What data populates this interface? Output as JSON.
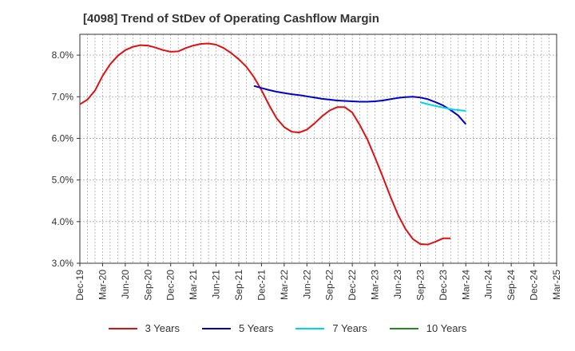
{
  "title": "[4098]  Trend of StDev of Operating Cashflow Margin",
  "colors": {
    "3 Years": "#dd1111",
    "5 Years": "#0000cc",
    "7 Years": "#00d4e8",
    "10 Years": "#228822"
  },
  "chart_data": {
    "type": "line",
    "title": "[4098]  Trend of StDev of Operating Cashflow Margin",
    "x_tick_labels": [
      "Dec-19",
      "Mar-20",
      "Jun-20",
      "Sep-20",
      "Dec-20",
      "Mar-21",
      "Jun-21",
      "Sep-21",
      "Dec-21",
      "Mar-22",
      "Jun-22",
      "Sep-22",
      "Dec-22",
      "Mar-23",
      "Jun-23",
      "Sep-23",
      "Dec-23",
      "Mar-24",
      "Jun-24",
      "Sep-24",
      "Dec-24",
      "Mar-25"
    ],
    "y_tick_labels": [
      "8.0%",
      "7.0%",
      "6.0%",
      "5.0%",
      "4.0%",
      "3.0%"
    ],
    "ylim": [
      3.0,
      8.5
    ],
    "y_unit": "%",
    "grid": true,
    "legend_position": "bottom",
    "series": [
      {
        "name": "3 Years",
        "x_start": "Dec-19",
        "step": "month",
        "values": [
          6.82,
          6.93,
          7.15,
          7.5,
          7.78,
          7.98,
          8.12,
          8.2,
          8.24,
          8.23,
          8.18,
          8.12,
          8.08,
          8.09,
          8.17,
          8.23,
          8.27,
          8.28,
          8.25,
          8.17,
          8.05,
          7.9,
          7.72,
          7.47,
          7.16,
          6.8,
          6.48,
          6.27,
          6.16,
          6.14,
          6.21,
          6.36,
          6.53,
          6.67,
          6.75,
          6.75,
          6.62,
          6.32,
          5.97,
          5.54,
          5.09,
          4.62,
          4.18,
          3.83,
          3.58,
          3.46,
          3.45,
          3.52,
          3.6,
          3.6
        ]
      },
      {
        "name": "5 Years",
        "x_start": "Nov-21",
        "step": "month",
        "values": [
          7.26,
          7.21,
          7.16,
          7.12,
          7.09,
          7.06,
          7.04,
          7.01,
          6.98,
          6.95,
          6.93,
          6.91,
          6.9,
          6.89,
          6.88,
          6.88,
          6.89,
          6.91,
          6.94,
          6.97,
          6.99,
          7.0,
          6.98,
          6.94,
          6.87,
          6.79,
          6.68,
          6.55,
          6.34
        ]
      },
      {
        "name": "7 Years",
        "x_start": "Sep-23",
        "step": "month",
        "values": [
          6.87,
          6.82,
          6.78,
          6.74,
          6.7,
          6.68,
          6.66
        ]
      },
      {
        "name": "10 Years",
        "x_start": "Sep-23",
        "step": "month",
        "values": []
      }
    ]
  }
}
